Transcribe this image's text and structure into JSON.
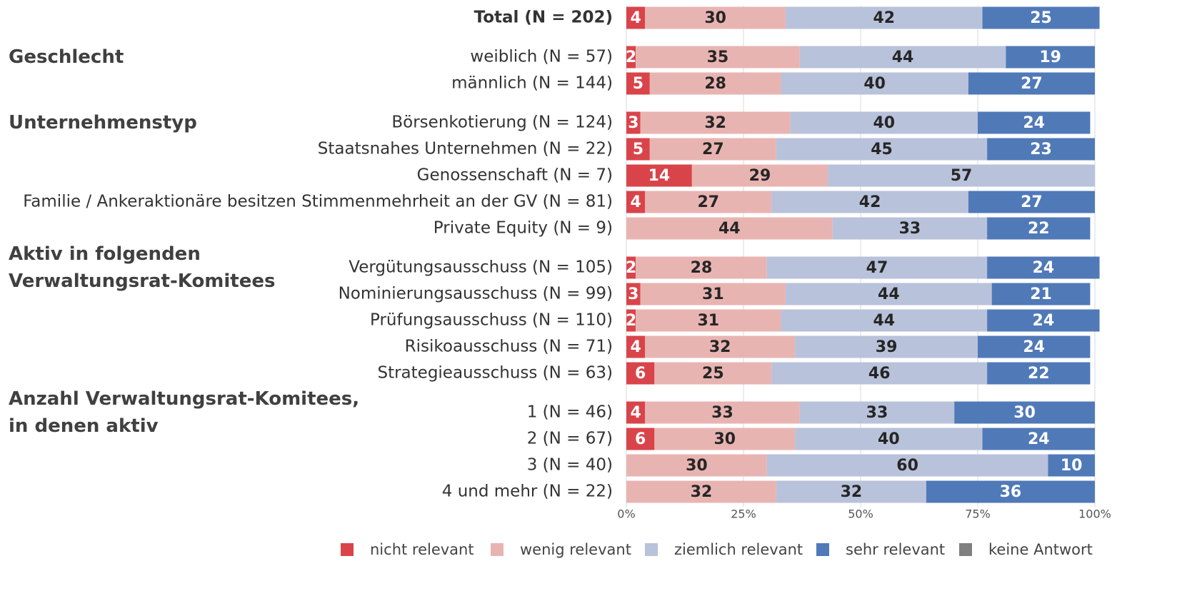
{
  "chart_data": {
    "type": "stacked_bar_horizontal",
    "categories": [
      "Total (N = 202)",
      "weiblich (N = 57)",
      "männlich (N = 144)",
      "Börsenkotierung (N = 124)",
      "Staatsnahes Unternehmen (N = 22)",
      "Genossenschaft (N = 7)",
      "Familie / Ankeraktionäre besitzen Stimmenmehrheit an der GV (N = 81)",
      "Private Equity (N = 9)",
      "Vergütungsausschuss (N = 105)",
      "Nominierungsausschuss (N = 99)",
      "Prüfungsausschuss (N = 110)",
      "Risikoausschuss (N = 71)",
      "Strategieausschuss (N = 63)",
      "1 (N = 46)",
      "2 (N = 67)",
      "3 (N = 40)",
      "4 und mehr (N = 22)"
    ],
    "groups": [
      "Geschlecht",
      "Unternehmenstyp",
      "Aktiv in folgenden\nVerwaltungsrat-Komitees",
      "Anzahl Verwaltungsrat-Komitees,\nin denen aktiv"
    ],
    "series": [
      {
        "name": "nicht relevant",
        "color": "#d9444a",
        "values": [
          4,
          2,
          5,
          3,
          5,
          14,
          4,
          null,
          2,
          3,
          2,
          4,
          6,
          4,
          6,
          null,
          null
        ]
      },
      {
        "name": "wenig relevant",
        "color": "#e8b4b2",
        "values": [
          30,
          35,
          28,
          32,
          27,
          29,
          27,
          44,
          28,
          31,
          31,
          32,
          25,
          33,
          30,
          30,
          32
        ]
      },
      {
        "name": "ziemlich relevant",
        "color": "#b9c2db",
        "values": [
          42,
          44,
          40,
          40,
          45,
          57,
          42,
          33,
          47,
          44,
          44,
          39,
          46,
          33,
          40,
          60,
          32
        ]
      },
      {
        "name": "sehr relevant",
        "color": "#5079b8",
        "values": [
          25,
          19,
          27,
          24,
          23,
          null,
          27,
          22,
          24,
          21,
          24,
          24,
          22,
          30,
          24,
          10,
          36
        ]
      },
      {
        "name": "keine Antwort",
        "color": "#808080",
        "values": [
          null,
          null,
          null,
          null,
          null,
          null,
          null,
          null,
          null,
          null,
          null,
          null,
          null,
          null,
          null,
          null,
          null
        ]
      }
    ],
    "xlim": [
      0,
      100
    ],
    "xticks": [
      {
        "value": 0,
        "label": "0%"
      },
      {
        "value": 25,
        "label": "25%"
      },
      {
        "value": 50,
        "label": "50%"
      },
      {
        "value": 75,
        "label": "75%"
      },
      {
        "value": 100,
        "label": "100%"
      }
    ],
    "grid": true
  }
}
